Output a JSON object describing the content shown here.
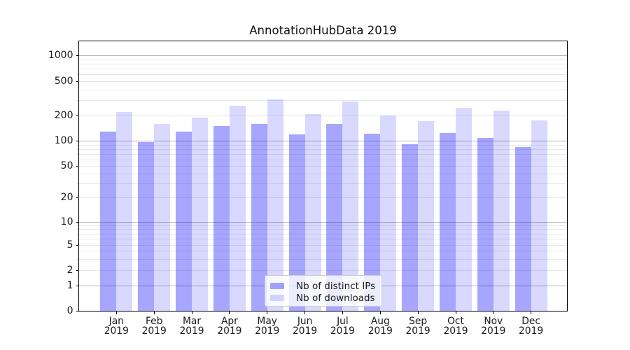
{
  "title": "AnnotationHubData 2019",
  "colors": {
    "ips_bar": "rgba(0,0,255,0.35)",
    "downloads_bar": "rgba(0,0,255,0.15)",
    "grid_major": "#b4b4b4",
    "grid_minor": "#e8e8e8",
    "axis": "#000000",
    "text": "#1a1a1a"
  },
  "legend": {
    "items": [
      {
        "label": "Nb of distinct IPs"
      },
      {
        "label": "Nb of downloads"
      }
    ]
  },
  "chart_data": {
    "type": "bar",
    "title": "AnnotationHubData 2019",
    "months": [
      "Jan",
      "Feb",
      "Mar",
      "Apr",
      "May",
      "Jun",
      "Jul",
      "Aug",
      "Sep",
      "Oct",
      "Nov",
      "Dec"
    ],
    "year": "2019",
    "categories": [
      "Jan 2019",
      "Feb 2019",
      "Mar 2019",
      "Apr 2019",
      "May 2019",
      "Jun 2019",
      "Jul 2019",
      "Aug 2019",
      "Sep 2019",
      "Oct 2019",
      "Nov 2019",
      "Dec 2019"
    ],
    "series": [
      {
        "name": "Nb of distinct IPs",
        "values": [
          130,
          97,
          131,
          151,
          161,
          120,
          160,
          122,
          93,
          124,
          110,
          86
        ]
      },
      {
        "name": "Nb of downloads",
        "values": [
          221,
          161,
          189,
          261,
          311,
          208,
          293,
          200,
          173,
          250,
          231,
          175
        ]
      }
    ],
    "yticks": [
      0,
      1,
      2,
      5,
      10,
      20,
      50,
      100,
      200,
      500,
      1000
    ],
    "yscale": "symlog",
    "ylim": [
      0,
      1500
    ],
    "xlabel": "",
    "ylabel": "",
    "grid": "horizontal, major at powers of 10, minor at 2-9 per decade",
    "legend_position": "lower center"
  }
}
